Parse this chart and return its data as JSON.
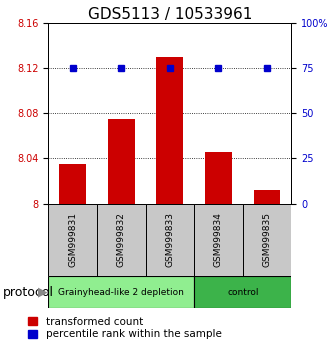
{
  "title": "GDS5113 / 10533961",
  "samples": [
    "GSM999831",
    "GSM999832",
    "GSM999833",
    "GSM999834",
    "GSM999835"
  ],
  "red_values": [
    8.035,
    8.075,
    8.13,
    8.046,
    8.012
  ],
  "blue_values": [
    75,
    75,
    75,
    75,
    75
  ],
  "ylim_left": [
    8.0,
    8.16
  ],
  "ylim_right": [
    0,
    100
  ],
  "yticks_left": [
    8.0,
    8.04,
    8.08,
    8.12,
    8.16
  ],
  "yticks_right": [
    0,
    25,
    50,
    75,
    100
  ],
  "ytick_labels_left": [
    "8",
    "8.04",
    "8.08",
    "8.12",
    "8.16"
  ],
  "ytick_labels_right": [
    "0",
    "25",
    "50",
    "75",
    "100%"
  ],
  "groups": [
    {
      "label": "Grainyhead-like 2 depletion",
      "start": 0,
      "end": 3,
      "color": "#90EE90"
    },
    {
      "label": "control",
      "start": 3,
      "end": 5,
      "color": "#3CB34A"
    }
  ],
  "protocol_label": "protocol",
  "legend_red": "transformed count",
  "legend_blue": "percentile rank within the sample",
  "bar_color": "#CC0000",
  "dot_color": "#0000CC",
  "bg_color": "#FFFFFF",
  "sample_bg_color": "#C8C8C8",
  "title_fontsize": 11,
  "tick_fontsize": 7,
  "sample_fontsize": 6.5,
  "legend_fontsize": 7.5,
  "protocol_fontsize": 9
}
